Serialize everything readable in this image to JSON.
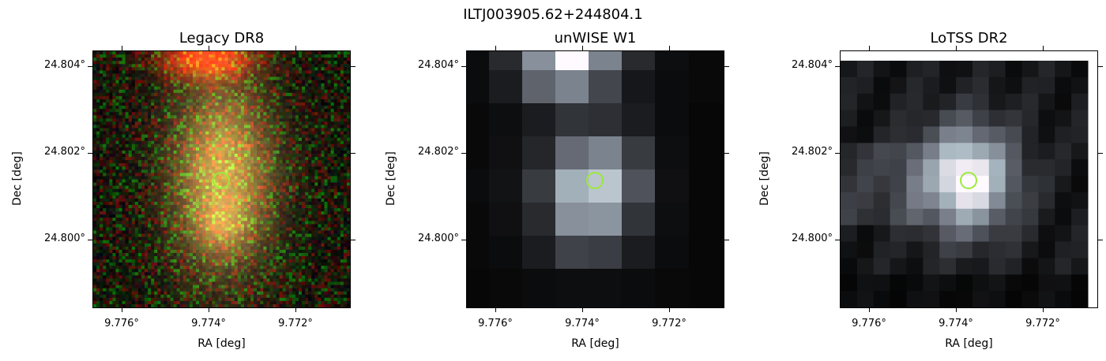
{
  "figure": {
    "suptitle": "ILTJ003905.62+244804.1"
  },
  "panels": [
    {
      "title": "Legacy DR8",
      "xlabel": "RA [deg]",
      "ylabel": "Dec [deg]",
      "xticks": [
        "9.776°",
        "9.774°",
        "9.772°"
      ],
      "yticks": [
        "24.804°",
        "24.802°",
        "24.800°"
      ],
      "image": "rgb-optical",
      "colormap": "rgb",
      "marker_color": "#9be93c"
    },
    {
      "title": "unWISE W1",
      "xlabel": "RA [deg]",
      "ylabel": "Dec [deg]",
      "xticks": [
        "9.776°",
        "9.774°",
        "9.772°"
      ],
      "yticks": [
        "24.804°",
        "24.802°",
        "24.800°"
      ],
      "image": "grayscale-infrared",
      "colormap": "bone",
      "marker_color": "#9be93c"
    },
    {
      "title": "LoTSS DR2",
      "xlabel": "RA [deg]",
      "ylabel": "Dec [deg]",
      "xticks": [
        "9.776°",
        "9.774°",
        "9.772°"
      ],
      "yticks": [
        "24.804°",
        "24.802°",
        "24.800°"
      ],
      "image": "grayscale-radio",
      "colormap": "bone",
      "marker_color": "#9be93c"
    }
  ]
}
